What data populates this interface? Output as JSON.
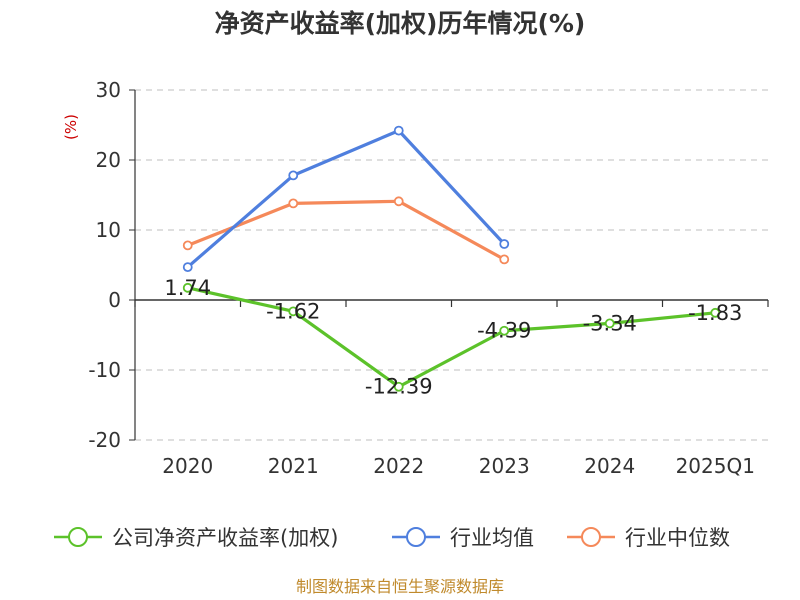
{
  "chart_data": {
    "type": "line",
    "title": "净资产收益率(加权)历年情况(%)",
    "ylabel": "(%)",
    "xlabel": "",
    "categories": [
      "2020",
      "2021",
      "2022",
      "2023",
      "2024",
      "2025Q1"
    ],
    "ylim": [
      -20,
      30
    ],
    "yticks": [
      30,
      20,
      10,
      0,
      -10,
      -20
    ],
    "yticks_text": [
      "30",
      "20",
      "10",
      "0",
      "-10",
      "-20"
    ],
    "grid": "horizontal-dashed",
    "legend_position": "bottom",
    "series": [
      {
        "name": "公司净资产收益率(加权)",
        "color": "#5cc22a",
        "values": [
          1.74,
          -1.62,
          -12.39,
          -4.39,
          -3.34,
          -1.83
        ],
        "labels": [
          "1.74",
          "-1.62",
          "-12.39",
          "-4.39",
          "-3.34",
          "-1.83"
        ]
      },
      {
        "name": "行业均值",
        "color": "#4f7fde",
        "values": [
          4.7,
          17.8,
          24.2,
          8.0,
          null,
          null
        ]
      },
      {
        "name": "行业中位数",
        "color": "#f5895a",
        "values": [
          7.8,
          13.8,
          14.1,
          5.8,
          null,
          null
        ]
      }
    ],
    "source": "制图数据来自恒生聚源数据库"
  }
}
